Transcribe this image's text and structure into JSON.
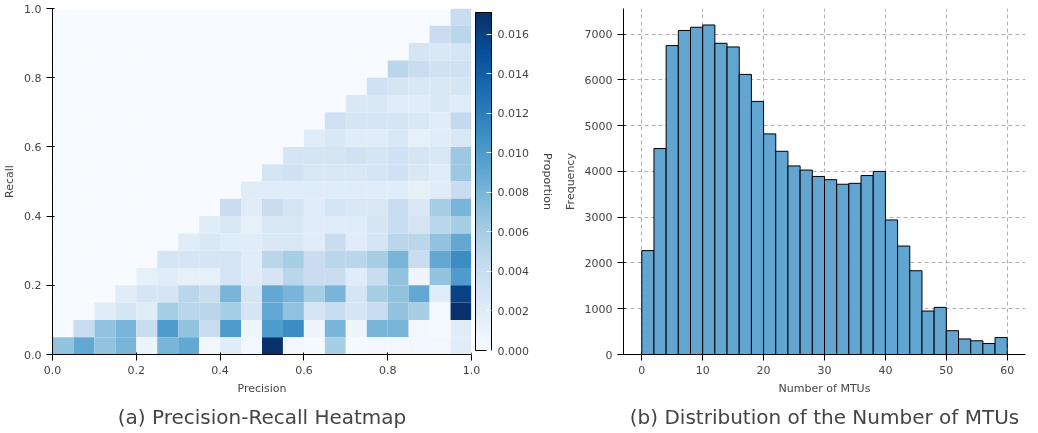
{
  "chart_data": [
    {
      "type": "heatmap",
      "title": "(a) Precision-Recall Heatmap",
      "xlabel": "Precision",
      "ylabel": "Recall",
      "clabel": "Proportion",
      "xlim": [
        0,
        1
      ],
      "ylim": [
        0,
        1
      ],
      "xticks": [
        {
          "value": 0,
          "label": "0.0"
        },
        {
          "value": 0.2,
          "label": "0.2"
        },
        {
          "value": 0.4,
          "label": "0.4"
        },
        {
          "value": 0.6,
          "label": "0.6"
        },
        {
          "value": 0.8,
          "label": "0.8"
        },
        {
          "value": 1,
          "label": "1.0"
        }
      ],
      "yticks": [
        {
          "value": 0,
          "label": "0.0"
        },
        {
          "value": 0.2,
          "label": "0.2"
        },
        {
          "value": 0.4,
          "label": "0.4"
        },
        {
          "value": 0.6,
          "label": "0.6"
        },
        {
          "value": 0.8,
          "label": "0.8"
        },
        {
          "value": 1,
          "label": "1.0"
        }
      ],
      "clim": [
        0,
        0.0171
      ],
      "cticks": [
        {
          "value": 0,
          "label": "0.000"
        },
        {
          "value": 0.002,
          "label": "0.002"
        },
        {
          "value": 0.004,
          "label": "0.004"
        },
        {
          "value": 0.006,
          "label": "0.006"
        },
        {
          "value": 0.008,
          "label": "0.008"
        },
        {
          "value": 0.01,
          "label": "0.010"
        },
        {
          "value": 0.012,
          "label": "0.012"
        },
        {
          "value": 0.014,
          "label": "0.014"
        },
        {
          "value": 0.016,
          "label": "0.016"
        }
      ],
      "cells": [
        [
          0,
          0,
          0,
          0,
          0,
          0,
          0,
          0,
          0,
          0,
          0,
          0,
          0,
          0,
          0,
          0,
          0,
          0,
          0,
          0.004
        ],
        [
          0,
          0,
          0,
          0,
          0,
          0,
          0,
          0,
          0,
          0,
          0,
          0,
          0,
          0,
          0,
          0,
          0,
          0,
          0.004,
          0.005
        ],
        [
          0,
          0,
          0,
          0,
          0,
          0,
          0,
          0,
          0,
          0,
          0,
          0,
          0,
          0,
          0,
          0,
          0,
          0.003,
          0.0025,
          0.003
        ],
        [
          0,
          0,
          0,
          0,
          0,
          0,
          0,
          0,
          0,
          0,
          0,
          0,
          0,
          0,
          0,
          0,
          0.005,
          0.004,
          0.0035,
          0.0035
        ],
        [
          0,
          0,
          0,
          0,
          0,
          0,
          0,
          0,
          0,
          0,
          0,
          0,
          0,
          0,
          0,
          0.0035,
          0.003,
          0.0025,
          0.0025,
          0.003
        ],
        [
          0,
          0,
          0,
          0,
          0,
          0,
          0,
          0,
          0,
          0,
          0,
          0,
          0,
          0,
          0.0025,
          0.0025,
          0.002,
          0.002,
          0.0025,
          0.002
        ],
        [
          0,
          0,
          0,
          0,
          0,
          0,
          0,
          0,
          0,
          0,
          0,
          0,
          0,
          0.0035,
          0.003,
          0.003,
          0.003,
          0.0025,
          0.002,
          0.0045
        ],
        [
          0,
          0,
          0,
          0,
          0,
          0,
          0,
          0,
          0,
          0,
          0,
          0,
          0.002,
          0.0025,
          0.002,
          0.002,
          0.0025,
          0.0015,
          0.002,
          0.0025
        ],
        [
          0,
          0,
          0,
          0,
          0,
          0,
          0,
          0,
          0,
          0,
          0,
          0.003,
          0.003,
          0.003,
          0.0035,
          0.003,
          0.0035,
          0.003,
          0.0025,
          0.0065
        ],
        [
          0,
          0,
          0,
          0,
          0,
          0,
          0,
          0,
          0,
          0,
          0.003,
          0.0035,
          0.0025,
          0.0025,
          0.0025,
          0.003,
          0.0035,
          0.0025,
          0.002,
          0.0065
        ],
        [
          0,
          0,
          0,
          0,
          0,
          0,
          0,
          0,
          0,
          0.002,
          0.002,
          0.002,
          0.002,
          0.002,
          0.002,
          0.002,
          0.002,
          0.0015,
          0.002,
          0.004
        ],
        [
          0,
          0,
          0,
          0,
          0,
          0,
          0,
          0,
          0.004,
          0.002,
          0.004,
          0.003,
          0.002,
          0.003,
          0.0025,
          0.0025,
          0.004,
          0.0025,
          0.006,
          0.008
        ],
        [
          0,
          0,
          0,
          0,
          0,
          0,
          0,
          0.002,
          0.0025,
          0.0015,
          0.0025,
          0.0025,
          0.002,
          0.002,
          0.002,
          0.003,
          0.004,
          0.003,
          0.005,
          0.006
        ],
        [
          0,
          0,
          0,
          0,
          0,
          0,
          0.002,
          0.0025,
          0.002,
          0.002,
          0.0025,
          0.0025,
          0.002,
          0.004,
          0.002,
          0.003,
          0.005,
          0.005,
          0.007,
          0.009
        ],
        [
          0,
          0,
          0,
          0,
          0,
          0.003,
          0.003,
          0.003,
          0.003,
          0.002,
          0.005,
          0.006,
          0.004,
          0.005,
          0.005,
          0.006,
          0.008,
          0.004,
          0.009,
          0.011
        ],
        [
          0,
          0,
          0,
          0,
          0.0015,
          0.002,
          0.0015,
          0.0015,
          0.003,
          0.002,
          0.003,
          0.005,
          0.004,
          0.004,
          0.002,
          0.004,
          0.007,
          0.0008,
          0.007,
          0.01
        ],
        [
          0,
          0,
          0,
          0.002,
          0.003,
          0.003,
          0.005,
          0.004,
          0.008,
          0.003,
          0.009,
          0.008,
          0.006,
          0.008,
          0.003,
          0.006,
          0.007,
          0.009,
          0.002,
          0.016
        ],
        [
          0,
          0,
          0.002,
          0.003,
          0.002,
          0.006,
          0.005,
          0.005,
          0.006,
          0.003,
          0.009,
          0.007,
          0.003,
          0.004,
          0.003,
          0.004,
          0.007,
          0.006,
          0.0003,
          0.017
        ],
        [
          0,
          0.004,
          0.007,
          0.008,
          0.004,
          0.01,
          0.007,
          0.004,
          0.01,
          0.0008,
          0.01,
          0.011,
          0.0008,
          0.008,
          0.0008,
          0.008,
          0.008,
          0.0005,
          0.0003,
          0.002
        ],
        [
          0.007,
          0.009,
          0.007,
          0.008,
          0.001,
          0.008,
          0.009,
          0.0005,
          0.002,
          0.0005,
          0.017,
          0.0005,
          0.0003,
          0.006,
          0.0003,
          0.0005,
          0.0005,
          0.0005,
          0.0005,
          0.002
        ]
      ]
    },
    {
      "type": "histogram",
      "title": "(b) Distribution of the Number of MTUs",
      "xlabel": "Number of MTUs",
      "ylabel": "Frequency",
      "color": "#62a5d1",
      "bins": [
        0,
        2,
        4,
        6,
        8,
        10,
        12,
        14,
        16,
        18,
        20,
        22,
        24,
        26,
        28,
        30,
        32,
        34,
        36,
        38,
        40,
        42,
        44,
        46,
        48,
        50,
        52,
        54,
        56,
        58,
        60
      ],
      "values": [
        2270,
        4500,
        6750,
        7080,
        7150,
        7200,
        6800,
        6720,
        6120,
        5530,
        4820,
        4440,
        4120,
        4030,
        3890,
        3820,
        3720,
        3740,
        3910,
        4000,
        2940,
        2370,
        1830,
        950,
        1030,
        520,
        340,
        300,
        240,
        370
      ],
      "xlim": [
        -3,
        63
      ],
      "xticks": [
        0,
        10,
        20,
        30,
        40,
        50,
        60
      ],
      "ylim": [
        0,
        7560
      ],
      "yticks": [
        0,
        1000,
        2000,
        3000,
        4000,
        5000,
        6000,
        7000
      ],
      "grid": true
    }
  ]
}
